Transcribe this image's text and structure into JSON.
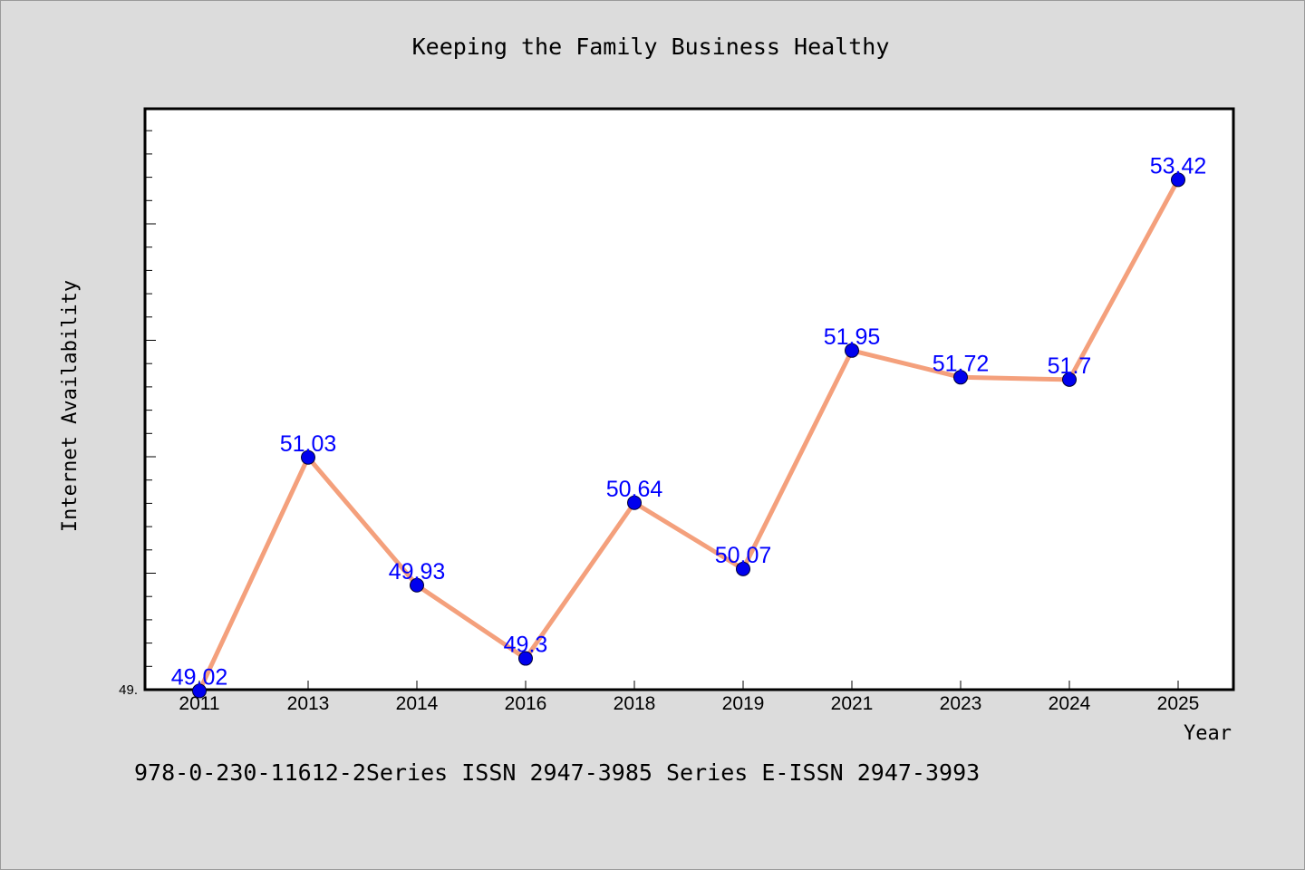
{
  "chart_data": {
    "type": "line",
    "title": "Keeping the Family Business Healthy",
    "xlabel": "Year",
    "ylabel": "Internet Availability",
    "categories": [
      "2011",
      "2013",
      "2014",
      "2016",
      "2018",
      "2019",
      "2021",
      "2023",
      "2024",
      "2025"
    ],
    "series": [
      {
        "values": [
          49.02,
          51.03,
          49.93,
          49.3,
          50.64,
          50.07,
          51.95,
          51.72,
          51.7,
          53.42
        ],
        "labels": [
          "49.02",
          "51.03",
          "49.93",
          "49.3",
          "50.64",
          "50.07",
          "51.95",
          "51.72",
          "51.7",
          "53.42"
        ],
        "line_color": "#f4a07c",
        "marker_color": "#0000ee",
        "label_color": "#0000ff"
      }
    ],
    "ylim": [
      49.0,
      54.0
    ],
    "y_tick_labels": [
      {
        "value": 49.0,
        "text": "49."
      }
    ],
    "grid": false,
    "legend": "none"
  },
  "footer": {
    "text": "978-0-230-11612-2Series ISSN 2947-3985 Series E-ISSN 2947-3993"
  }
}
